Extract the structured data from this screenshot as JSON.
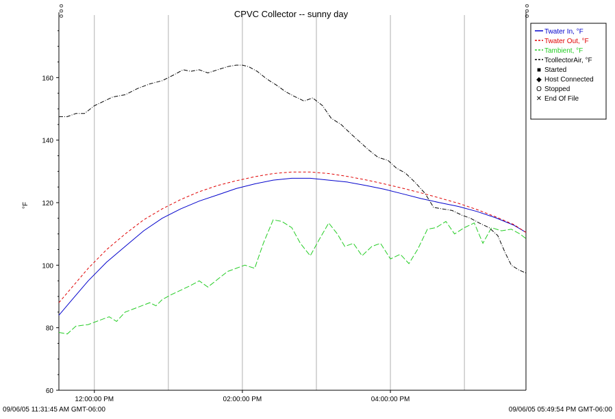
{
  "chart_data": {
    "type": "line",
    "title": "CPVC Collector -- sunny day",
    "ylabel": "°F",
    "ylim": [
      60,
      180
    ],
    "y_ticks": [
      60,
      80,
      100,
      120,
      140,
      160
    ],
    "x_domain_minutes": [
      -28.75,
      349.9
    ],
    "x_ticks": [
      {
        "at": 0,
        "label": "12:00:00 PM"
      },
      {
        "at": 120,
        "label": "02:00:00 PM"
      },
      {
        "at": 240,
        "label": "04:00:00 PM"
      }
    ],
    "x_gridlines": [
      0,
      60,
      120,
      180,
      240,
      300
    ],
    "start_label": "09/06/05 11:31:45 AM GMT-06:00",
    "end_label": "09/06/05 05:49:54 PM GMT-06:00",
    "top_marker_label": "o o o",
    "grid": true,
    "legend_position": "top-right",
    "series": [
      {
        "name": "Twater In, °F",
        "color": "#0000cc",
        "dash": "",
        "x": [
          -28.75,
          -18,
          -5,
          10,
          25,
          40,
          55,
          70,
          85,
          100,
          115,
          130,
          145,
          160,
          175,
          190,
          205,
          220,
          235,
          250,
          265,
          280,
          295,
          310,
          325,
          340,
          349.9
        ],
        "y": [
          84,
          89,
          95,
          101,
          106,
          111,
          115,
          118,
          120.5,
          122.5,
          124.5,
          126,
          127.2,
          127.8,
          127.8,
          127.2,
          126.6,
          125.5,
          124.3,
          122.8,
          121.3,
          120,
          118.8,
          117.2,
          115.2,
          112.8,
          110.5
        ]
      },
      {
        "name": "Twater Out, °F",
        "color": "#e00000",
        "dash": "4,3",
        "x": [
          -28.75,
          -18,
          -5,
          10,
          25,
          40,
          55,
          70,
          85,
          100,
          115,
          130,
          145,
          160,
          175,
          190,
          205,
          220,
          235,
          250,
          265,
          280,
          295,
          310,
          325,
          340,
          349.9
        ],
        "y": [
          88,
          93,
          99,
          105,
          110,
          114.5,
          118,
          121,
          123.5,
          125.5,
          127,
          128.3,
          129.3,
          129.8,
          129.8,
          129.3,
          128.4,
          127.3,
          126,
          124.6,
          123.1,
          121.5,
          119.8,
          117.8,
          115.5,
          113,
          110.5
        ]
      },
      {
        "name": "Tambient, °F",
        "color": "#22cc22",
        "dash": "8,3",
        "x": [
          -28.75,
          -22,
          -15,
          -5,
          5,
          12,
          18,
          25,
          35,
          45,
          50,
          55,
          62,
          70,
          78,
          85,
          92,
          100,
          108,
          115,
          122,
          130,
          137,
          145,
          152,
          160,
          167,
          175,
          182,
          190,
          197,
          203,
          210,
          217,
          225,
          232,
          240,
          248,
          255,
          262,
          270,
          277,
          285,
          292,
          300,
          308,
          315,
          322,
          330,
          338,
          345,
          349.9
        ],
        "y": [
          78.5,
          78,
          80.5,
          81,
          82.5,
          83.5,
          82,
          85,
          86.5,
          88,
          87,
          89,
          90.5,
          92,
          93.5,
          95,
          93,
          95.5,
          98,
          99,
          100,
          99,
          107,
          114.5,
          114,
          112,
          107,
          103,
          108,
          113.5,
          110,
          106,
          107,
          103,
          106,
          107,
          102,
          103.5,
          100.5,
          105,
          111.5,
          112,
          114,
          110,
          112,
          113.5,
          107,
          112,
          111,
          111.5,
          110,
          108.5
        ]
      },
      {
        "name": "TcollectorAir, °F",
        "color": "#000000",
        "dash": "6,2,1,2",
        "x": [
          -28.75,
          -22,
          -15,
          -8,
          0,
          8,
          15,
          25,
          35,
          45,
          55,
          65,
          72,
          78,
          85,
          92,
          100,
          108,
          115,
          120,
          125,
          132,
          140,
          148,
          155,
          162,
          170,
          177,
          185,
          192,
          200,
          208,
          215,
          222,
          230,
          238,
          245,
          252,
          260,
          268,
          275,
          282,
          290,
          298,
          305,
          312,
          320,
          327,
          333,
          338,
          344,
          349.9
        ],
        "y": [
          147.5,
          147.5,
          148.5,
          148.5,
          151,
          152.5,
          153.8,
          154.5,
          156.5,
          158,
          159,
          161,
          162.5,
          162,
          162.5,
          161.5,
          162.5,
          163.5,
          164,
          164,
          163.5,
          162,
          159.5,
          157.5,
          155.5,
          154,
          152.5,
          153.5,
          151,
          147,
          145,
          142,
          139.5,
          137,
          134.5,
          133.5,
          131,
          129.5,
          126.5,
          123,
          118.5,
          118,
          117.5,
          116,
          115,
          113.5,
          112,
          109.5,
          104,
          100,
          98.5,
          97.5
        ]
      }
    ],
    "legend_extra": [
      {
        "icon": "started-marker-icon",
        "label": "Started",
        "glyph": "■"
      },
      {
        "icon": "host-connected-marker-icon",
        "label": "Host Connected",
        "glyph": "◆"
      },
      {
        "icon": "stopped-marker-icon",
        "label": "Stopped",
        "glyph": "O"
      },
      {
        "icon": "end-of-file-marker-icon",
        "label": "End Of File",
        "glyph": "✕"
      }
    ]
  }
}
